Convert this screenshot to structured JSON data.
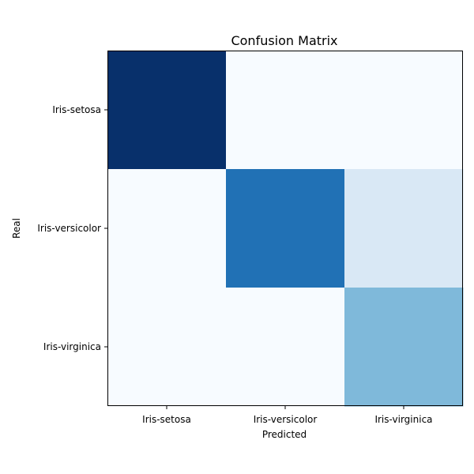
{
  "chart_data": {
    "type": "heatmap",
    "title": "Confusion Matrix",
    "xlabel": "Predicted",
    "ylabel": "Real",
    "x_categories": [
      "Iris-setosa",
      "Iris-versicolor",
      "Iris-virginica"
    ],
    "y_categories": [
      "Iris-setosa",
      "Iris-versicolor",
      "Iris-virginica"
    ],
    "values": [
      [
        1.0,
        0.0,
        0.0
      ],
      [
        0.0,
        0.75,
        0.15
      ],
      [
        0.0,
        0.0,
        0.45
      ]
    ],
    "colormap": "Blues",
    "colors": {
      "low": "#f7fbff",
      "high": "#08306b"
    },
    "grid": false
  }
}
